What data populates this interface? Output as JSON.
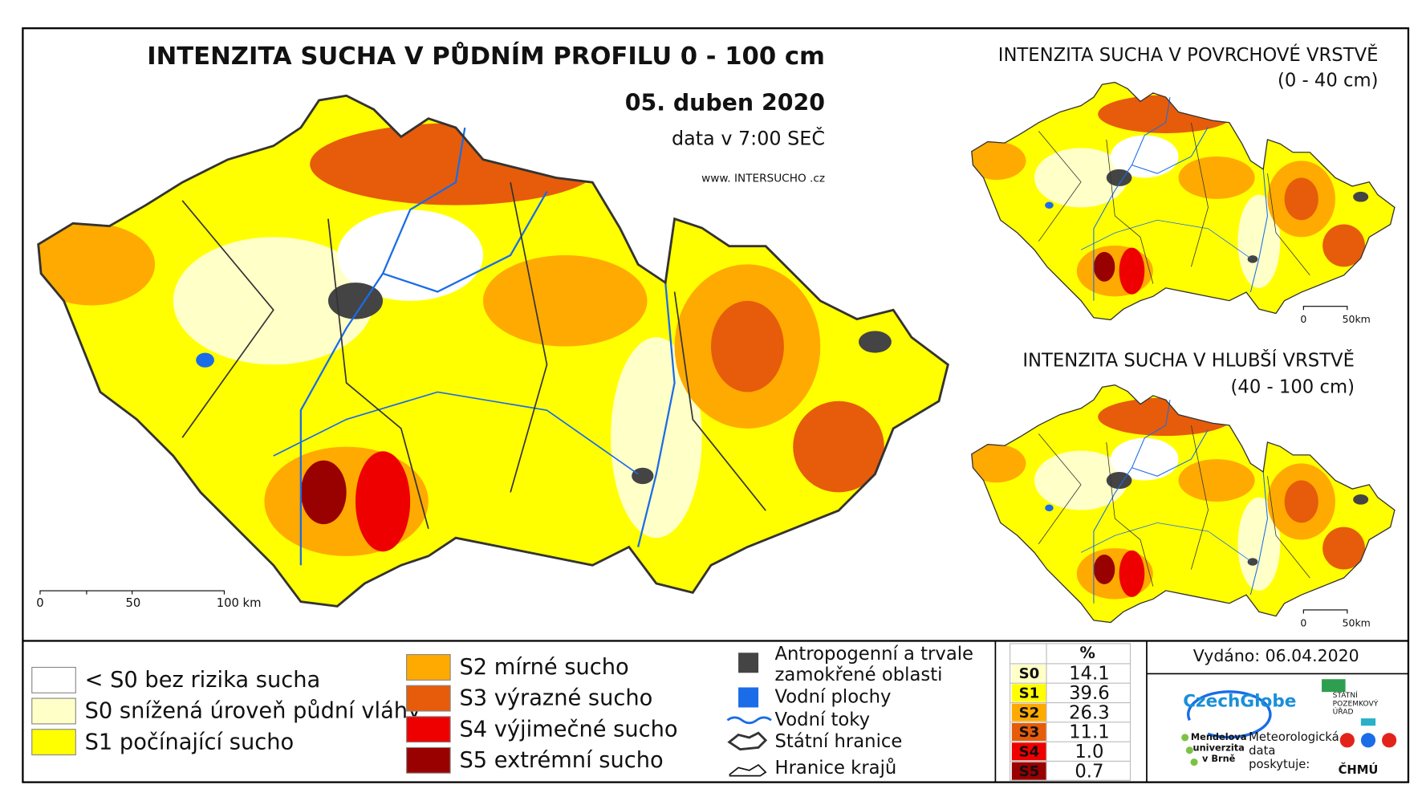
{
  "main_map": {
    "title": "INTENZITA SUCHA V PŮDNÍM PROFILU 0 - 100 cm",
    "date": "05. duben 2020",
    "time": "data v 7:00 SEČ",
    "website": "www. INTERSUCHO .cz",
    "scale": [
      "0",
      "50",
      "100 km"
    ]
  },
  "surface_map": {
    "title": "INTENZITA SUCHA V POVRCHOVÉ VRSTVĚ",
    "depth": "(0 - 40 cm)",
    "scale": [
      "0",
      "50km"
    ]
  },
  "deep_map": {
    "title": "INTENZITA SUCHA V HLUBŠÍ VRSTVĚ",
    "depth": "(40 - 100 cm)",
    "scale": [
      "0",
      "50km"
    ]
  },
  "legend": {
    "drought": [
      {
        "label": "< S0 bez rizika sucha",
        "color": "#ffffff"
      },
      {
        "label": "S0 snížená úroveň půdní vláhy",
        "color": "#ffffc8"
      },
      {
        "label": "S1 počínající sucho",
        "color": "#ffff00"
      },
      {
        "label": "S2 mírné sucho",
        "color": "#ffaa00"
      },
      {
        "label": "S3 výrazné sucho",
        "color": "#e65c0a"
      },
      {
        "label": "S4 výjimečné sucho",
        "color": "#ee0000"
      },
      {
        "label": "S5 extrémní sucho",
        "color": "#990000"
      }
    ],
    "other": [
      "Antropogenní a trvale",
      "zamokřené oblasti",
      "Vodní plochy",
      "Vodní toky",
      "Státní hranice",
      "Hranice krajů"
    ]
  },
  "table": {
    "header": "%",
    "rows": [
      {
        "class": "S0",
        "percent": "14.1",
        "color": "#ffffc8"
      },
      {
        "class": "S1",
        "percent": "39.6",
        "color": "#ffff00"
      },
      {
        "class": "S2",
        "percent": "26.3",
        "color": "#ffaa00"
      },
      {
        "class": "S3",
        "percent": "11.1",
        "color": "#e65c0a"
      },
      {
        "class": "S4",
        "percent": "1.0",
        "color": "#ee0000"
      },
      {
        "class": "S5",
        "percent": "0.7",
        "color": "#990000"
      }
    ]
  },
  "issued": "Vydáno: 06.04.2020",
  "credits": {
    "czechglobe": "CzechGlobe",
    "mendelu": [
      "Mendelova",
      "univerzita",
      "v Brně"
    ],
    "data": [
      "Meteorologická",
      "data",
      "poskytuje:"
    ],
    "chmu": "ČHMÚ",
    "spu": [
      "STÁTNÍ",
      "POZEMKOVÝ",
      "ÚŘAD"
    ]
  }
}
